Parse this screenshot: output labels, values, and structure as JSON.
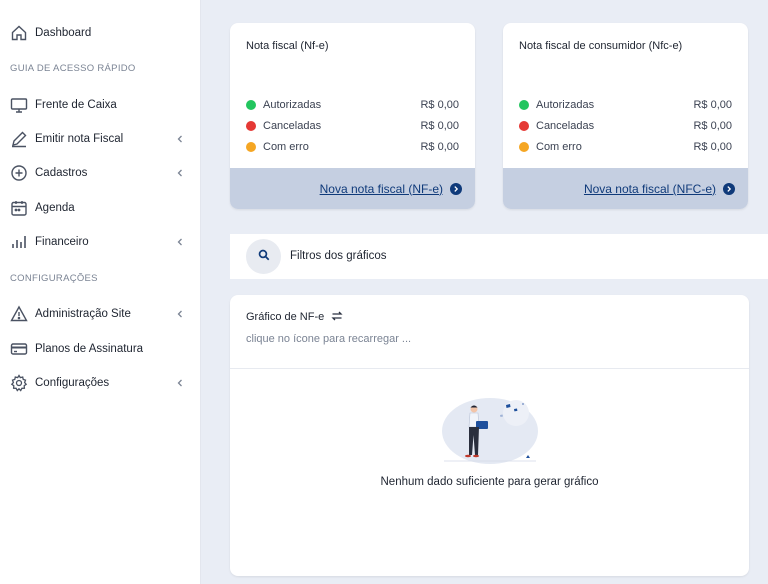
{
  "sidebar": {
    "dashboard": "Dashboard",
    "section_quick": "GUIA DE ACESSO RÁPIDO",
    "frente_caixa": "Frente de Caixa",
    "emitir_nota": "Emitir nota Fiscal",
    "cadastros": "Cadastros",
    "agenda": "Agenda",
    "financeiro": "Financeiro",
    "section_config": "CONFIGURAÇÕES",
    "admin_site": "Administração Site",
    "planos": "Planos de Assinatura",
    "configuracoes": "Configurações"
  },
  "nfe_card": {
    "title": "Nota fiscal (Nf-e)",
    "rows": [
      {
        "label": "Autorizadas",
        "value": "R$ 0,00",
        "color": "#22c55e"
      },
      {
        "label": "Canceladas",
        "value": "R$ 0,00",
        "color": "#e53935"
      },
      {
        "label": "Com erro",
        "value": "R$ 0,00",
        "color": "#f5a623"
      }
    ],
    "link": "Nova nota fiscal (NF-e)"
  },
  "nfce_card": {
    "title": "Nota fiscal de consumidor (Nfc-e)",
    "rows": [
      {
        "label": "Autorizadas",
        "value": "R$ 0,00",
        "color": "#22c55e"
      },
      {
        "label": "Canceladas",
        "value": "R$ 0,00",
        "color": "#e53935"
      },
      {
        "label": "Com erro",
        "value": "R$ 0,00",
        "color": "#f5a623"
      }
    ],
    "link": "Nova nota fiscal (NFC-e)"
  },
  "filters": {
    "label": "Filtros dos gráficos"
  },
  "chart_card": {
    "title": "Gráfico de NF-e",
    "hint": "clique no ícone para recarregar ...",
    "empty_message": "Nenhum dado suficiente para gerar gráfico"
  },
  "colors": {
    "accent": "#0f3a7a",
    "footer_bg": "#c5cfe1",
    "page_bg": "#e9edf5"
  }
}
